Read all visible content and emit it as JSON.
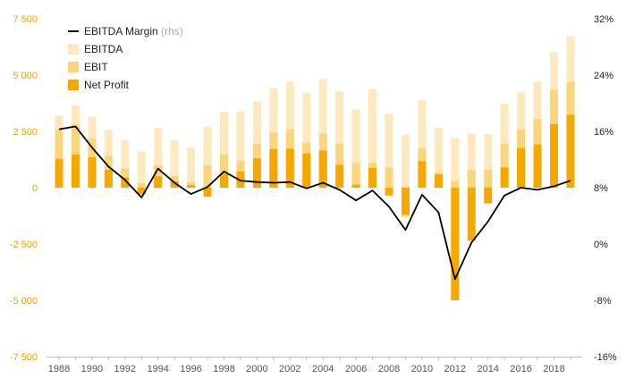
{
  "chart_data": {
    "type": "bar",
    "x": [
      1988,
      1989,
      1990,
      1991,
      1992,
      1993,
      1994,
      1995,
      1996,
      1997,
      1998,
      1999,
      2000,
      2001,
      2002,
      2003,
      2004,
      2005,
      2006,
      2007,
      2008,
      2009,
      2010,
      2011,
      2012,
      2013,
      2014,
      2015,
      2016,
      2017,
      2018,
      2019
    ],
    "x_tick_labels": [
      "1988",
      "1990",
      "1992",
      "1994",
      "1996",
      "1998",
      "2000",
      "2002",
      "2004",
      "2006",
      "2008",
      "2010",
      "2012",
      "2014",
      "2016",
      "2018"
    ],
    "series": [
      {
        "name": "EBITDA",
        "kind": "bar",
        "color": "#fde9bd",
        "values": [
          3200,
          3650,
          3150,
          2550,
          2100,
          1600,
          2650,
          2100,
          1800,
          2700,
          3380,
          3380,
          3830,
          4420,
          4720,
          4220,
          4820,
          4280,
          3480,
          4380,
          3270,
          2350,
          3880,
          2660,
          2200,
          2400,
          2380,
          3720,
          4220,
          4720,
          6000,
          6730
        ]
      },
      {
        "name": "EBIT",
        "kind": "bar",
        "color": "#fbd57c",
        "values": [
          2580,
          2820,
          2180,
          1420,
          850,
          200,
          1000,
          520,
          250,
          1000,
          1480,
          1200,
          1950,
          2450,
          2600,
          2000,
          2400,
          1950,
          1100,
          1100,
          900,
          -1300,
          1750,
          680,
          300,
          800,
          800,
          1960,
          2600,
          3050,
          4350,
          4700
        ]
      },
      {
        "name": "Net Profit",
        "kind": "bar",
        "color": "#f5a800",
        "values": [
          1280,
          1480,
          1350,
          790,
          450,
          -300,
          500,
          280,
          120,
          -400,
          620,
          720,
          1300,
          1720,
          1730,
          1520,
          1650,
          1020,
          140,
          870,
          -350,
          -1200,
          1180,
          590,
          -5000,
          -2350,
          -700,
          900,
          1750,
          1920,
          2820,
          3230
        ]
      },
      {
        "name": "EBITDA Margin",
        "note": "(rhs)",
        "kind": "line",
        "axis": "right",
        "color": "#000000",
        "values": [
          16.3,
          16.7,
          13.7,
          11.0,
          9.1,
          6.6,
          10.7,
          8.7,
          7.1,
          8.1,
          10.3,
          9.0,
          8.8,
          8.7,
          8.8,
          7.9,
          8.7,
          7.7,
          6.2,
          7.6,
          5.3,
          2.0,
          7.0,
          4.5,
          -5.0,
          0.2,
          3.2,
          6.9,
          8.0,
          7.7,
          8.2,
          9.0
        ]
      }
    ],
    "left_axis": {
      "ylim": [
        -7500,
        7500
      ],
      "ticks": [
        -7500,
        -5000,
        -2500,
        0,
        2500,
        5000,
        7500
      ],
      "tick_labels": [
        "-7 500",
        "-5 000",
        "-2 500",
        "0",
        "2 500",
        "5 000",
        "7 500"
      ],
      "color": "#e8a400"
    },
    "right_axis": {
      "ylim": [
        -16,
        32
      ],
      "ticks": [
        -16,
        -8,
        0,
        8,
        16,
        24,
        32
      ],
      "tick_labels": [
        "-16%",
        "-8%",
        "0%",
        "8%",
        "16%",
        "24%",
        "32%"
      ]
    },
    "legend_placement": "top-left",
    "grid": false
  }
}
